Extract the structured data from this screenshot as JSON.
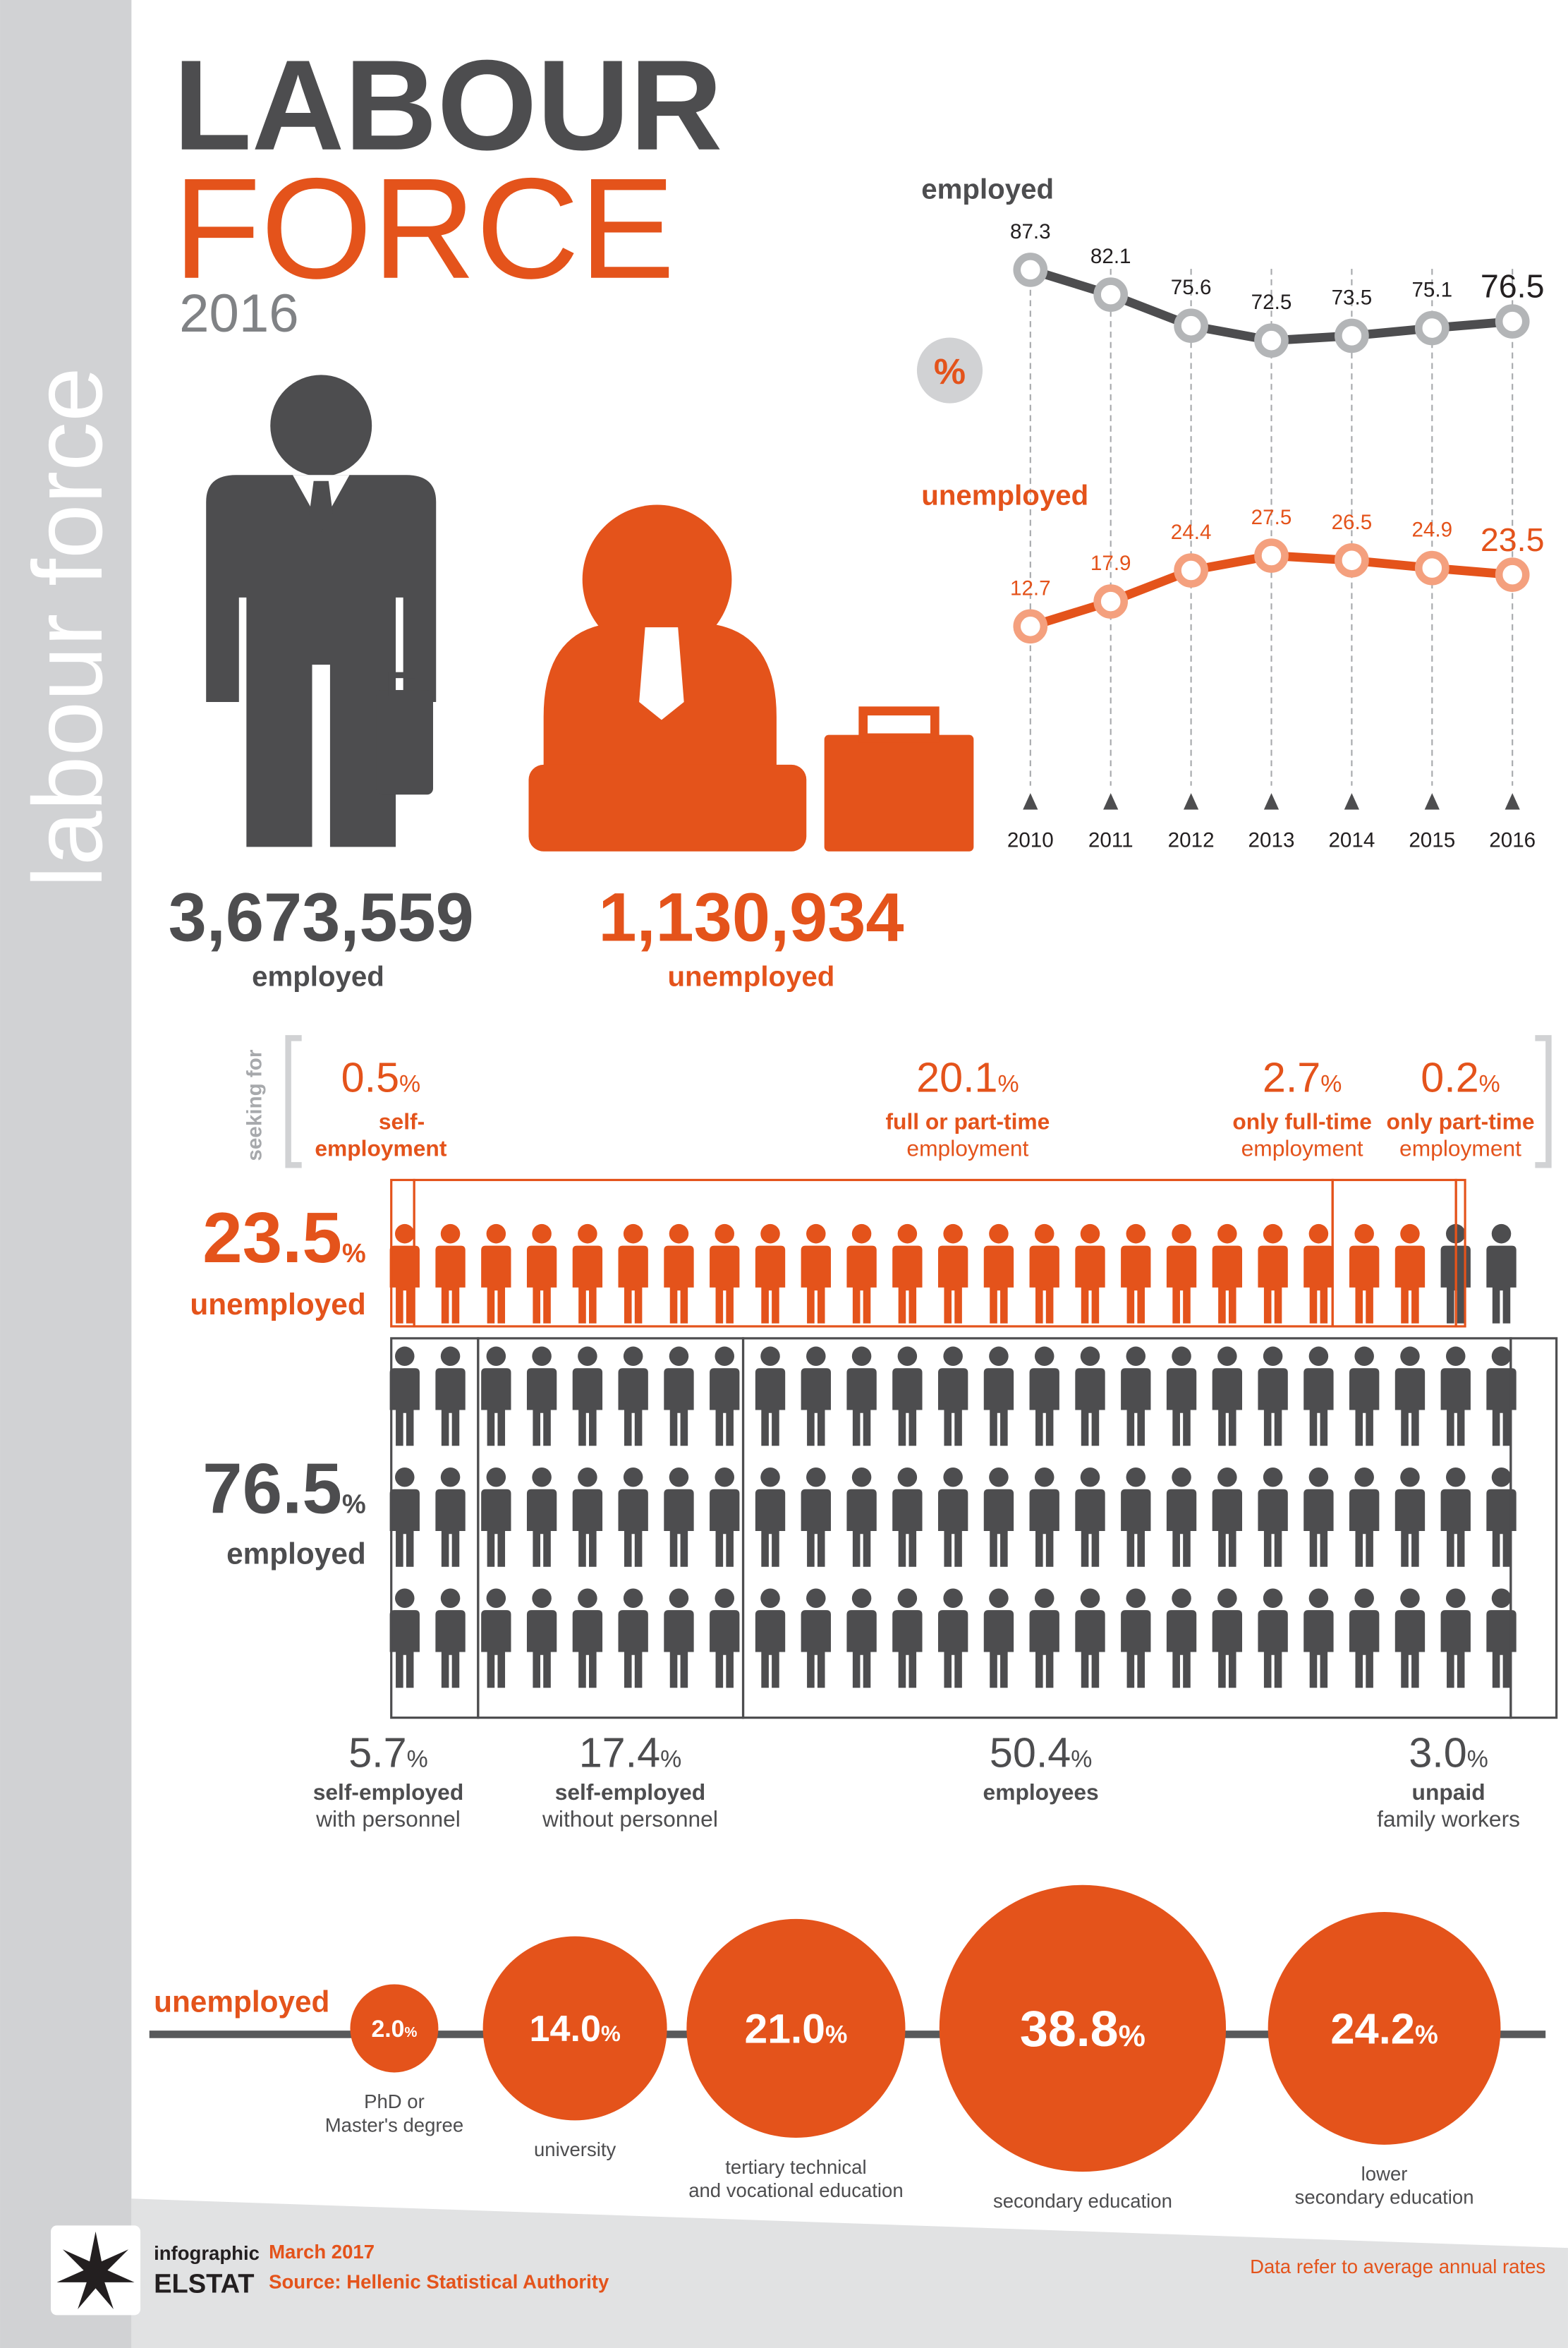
{
  "header": {
    "title_top": "LABOUR",
    "title_bottom": "FORCE",
    "year": "2016",
    "side_label": "labour force"
  },
  "totals": [
    {
      "value": "3,673,559",
      "label": "employed"
    },
    {
      "value": "1,130,934",
      "label": "unemployed"
    }
  ],
  "chart_data": [
    {
      "type": "line",
      "unit": "%",
      "categories": [
        "2010",
        "2011",
        "2012",
        "2013",
        "2014",
        "2015",
        "2016"
      ],
      "ylim": [
        0,
        100
      ],
      "series": [
        {
          "name": "employed",
          "color": "#4d4d4f",
          "marker_color": "#b3b5b7",
          "values": [
            87.3,
            82.1,
            75.6,
            72.5,
            73.5,
            75.1,
            76.5
          ]
        },
        {
          "name": "unemployed",
          "color": "#e4531b",
          "marker_color": "#f4a07e",
          "values": [
            12.7,
            17.9,
            24.4,
            27.5,
            26.5,
            24.9,
            23.5
          ]
        }
      ]
    },
    {
      "type": "pictogram",
      "unit": "%",
      "rows": [
        {
          "name": "unemployed",
          "value": 23.5,
          "color": "#e4531b"
        },
        {
          "name": "employed",
          "value": 76.5,
          "color": "#4d4d4f"
        }
      ],
      "seeking_label": "seeking for",
      "seeking": [
        {
          "name": "self-",
          "detail": "employment",
          "value": 0.5
        },
        {
          "name": "full or part-time",
          "detail": "employment",
          "value": 20.1
        },
        {
          "name": "only full-time",
          "detail": "employment",
          "value": 2.7
        },
        {
          "name": "only part-time",
          "detail": "employment",
          "value": 0.2
        }
      ],
      "status": [
        {
          "name": "self-employed",
          "detail": "with personnel",
          "value": 5.7
        },
        {
          "name": "self-employed",
          "detail": "without personnel",
          "value": 17.4
        },
        {
          "name": "employees",
          "value": 50.4
        },
        {
          "name": "unpaid",
          "detail": "family workers",
          "value": 3.0,
          "value_label": "3.0"
        }
      ]
    },
    {
      "type": "bubble",
      "title": "unemployed",
      "unit": "%",
      "color": "#e4531b",
      "categories": [
        "PhD or\nMaster's degree",
        "university",
        "tertiary technical\nand vocational education",
        "secondary education",
        "lower\nsecondary education"
      ],
      "values": [
        2.0,
        14.0,
        21.0,
        38.8,
        24.2
      ],
      "value_labels": [
        "2.0",
        "14.0",
        "21.0",
        "38.8",
        "24.2"
      ]
    }
  ],
  "footer": {
    "brand_top": "infographic",
    "brand": "ELSTAT",
    "date": "March 2017",
    "source": "Source: Hellenic Statistical Authority",
    "note": "Data refer to average annual rates"
  }
}
